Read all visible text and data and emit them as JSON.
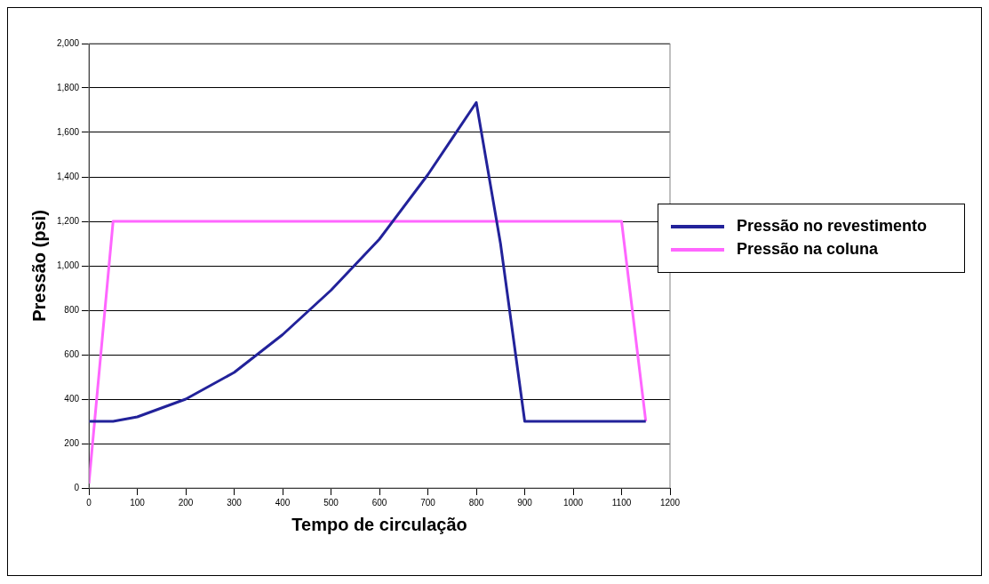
{
  "chart_data": {
    "type": "line",
    "xlabel": "Tempo de circulação",
    "ylabel": "Pressão (psi)",
    "xlim": [
      0,
      1200
    ],
    "xticks": [
      0,
      100,
      200,
      300,
      400,
      500,
      600,
      700,
      800,
      900,
      1000,
      1100,
      1200
    ],
    "ylim": [
      0,
      2000
    ],
    "yticks": [
      0,
      200,
      400,
      600,
      800,
      {
        "value": 1000,
        "label": "1,000"
      },
      {
        "value": 1200,
        "label": "1,200"
      },
      {
        "value": 1400,
        "label": "1,400"
      },
      {
        "value": 1600,
        "label": "1,600"
      },
      {
        "value": 1800,
        "label": "1,800"
      },
      {
        "value": 2000,
        "label": "2,000"
      }
    ],
    "grid": "y",
    "legend": "right",
    "marker": "none",
    "line_style": "solid",
    "series": [
      {
        "name": "Pressão no revestimento",
        "color": "#22229a",
        "x": [
          0,
          50,
          100,
          200,
          300,
          400,
          500,
          600,
          700,
          800,
          850,
          900,
          1150
        ],
        "values": [
          300,
          300,
          320,
          400,
          520,
          690,
          890,
          1120,
          1410,
          1735,
          1100,
          300,
          300
        ]
      },
      {
        "name": "Pressão na coluna",
        "color": "#ff66ff",
        "x": [
          0,
          50,
          1100,
          1150
        ],
        "values": [
          20,
          1200,
          1200,
          300
        ]
      }
    ]
  }
}
